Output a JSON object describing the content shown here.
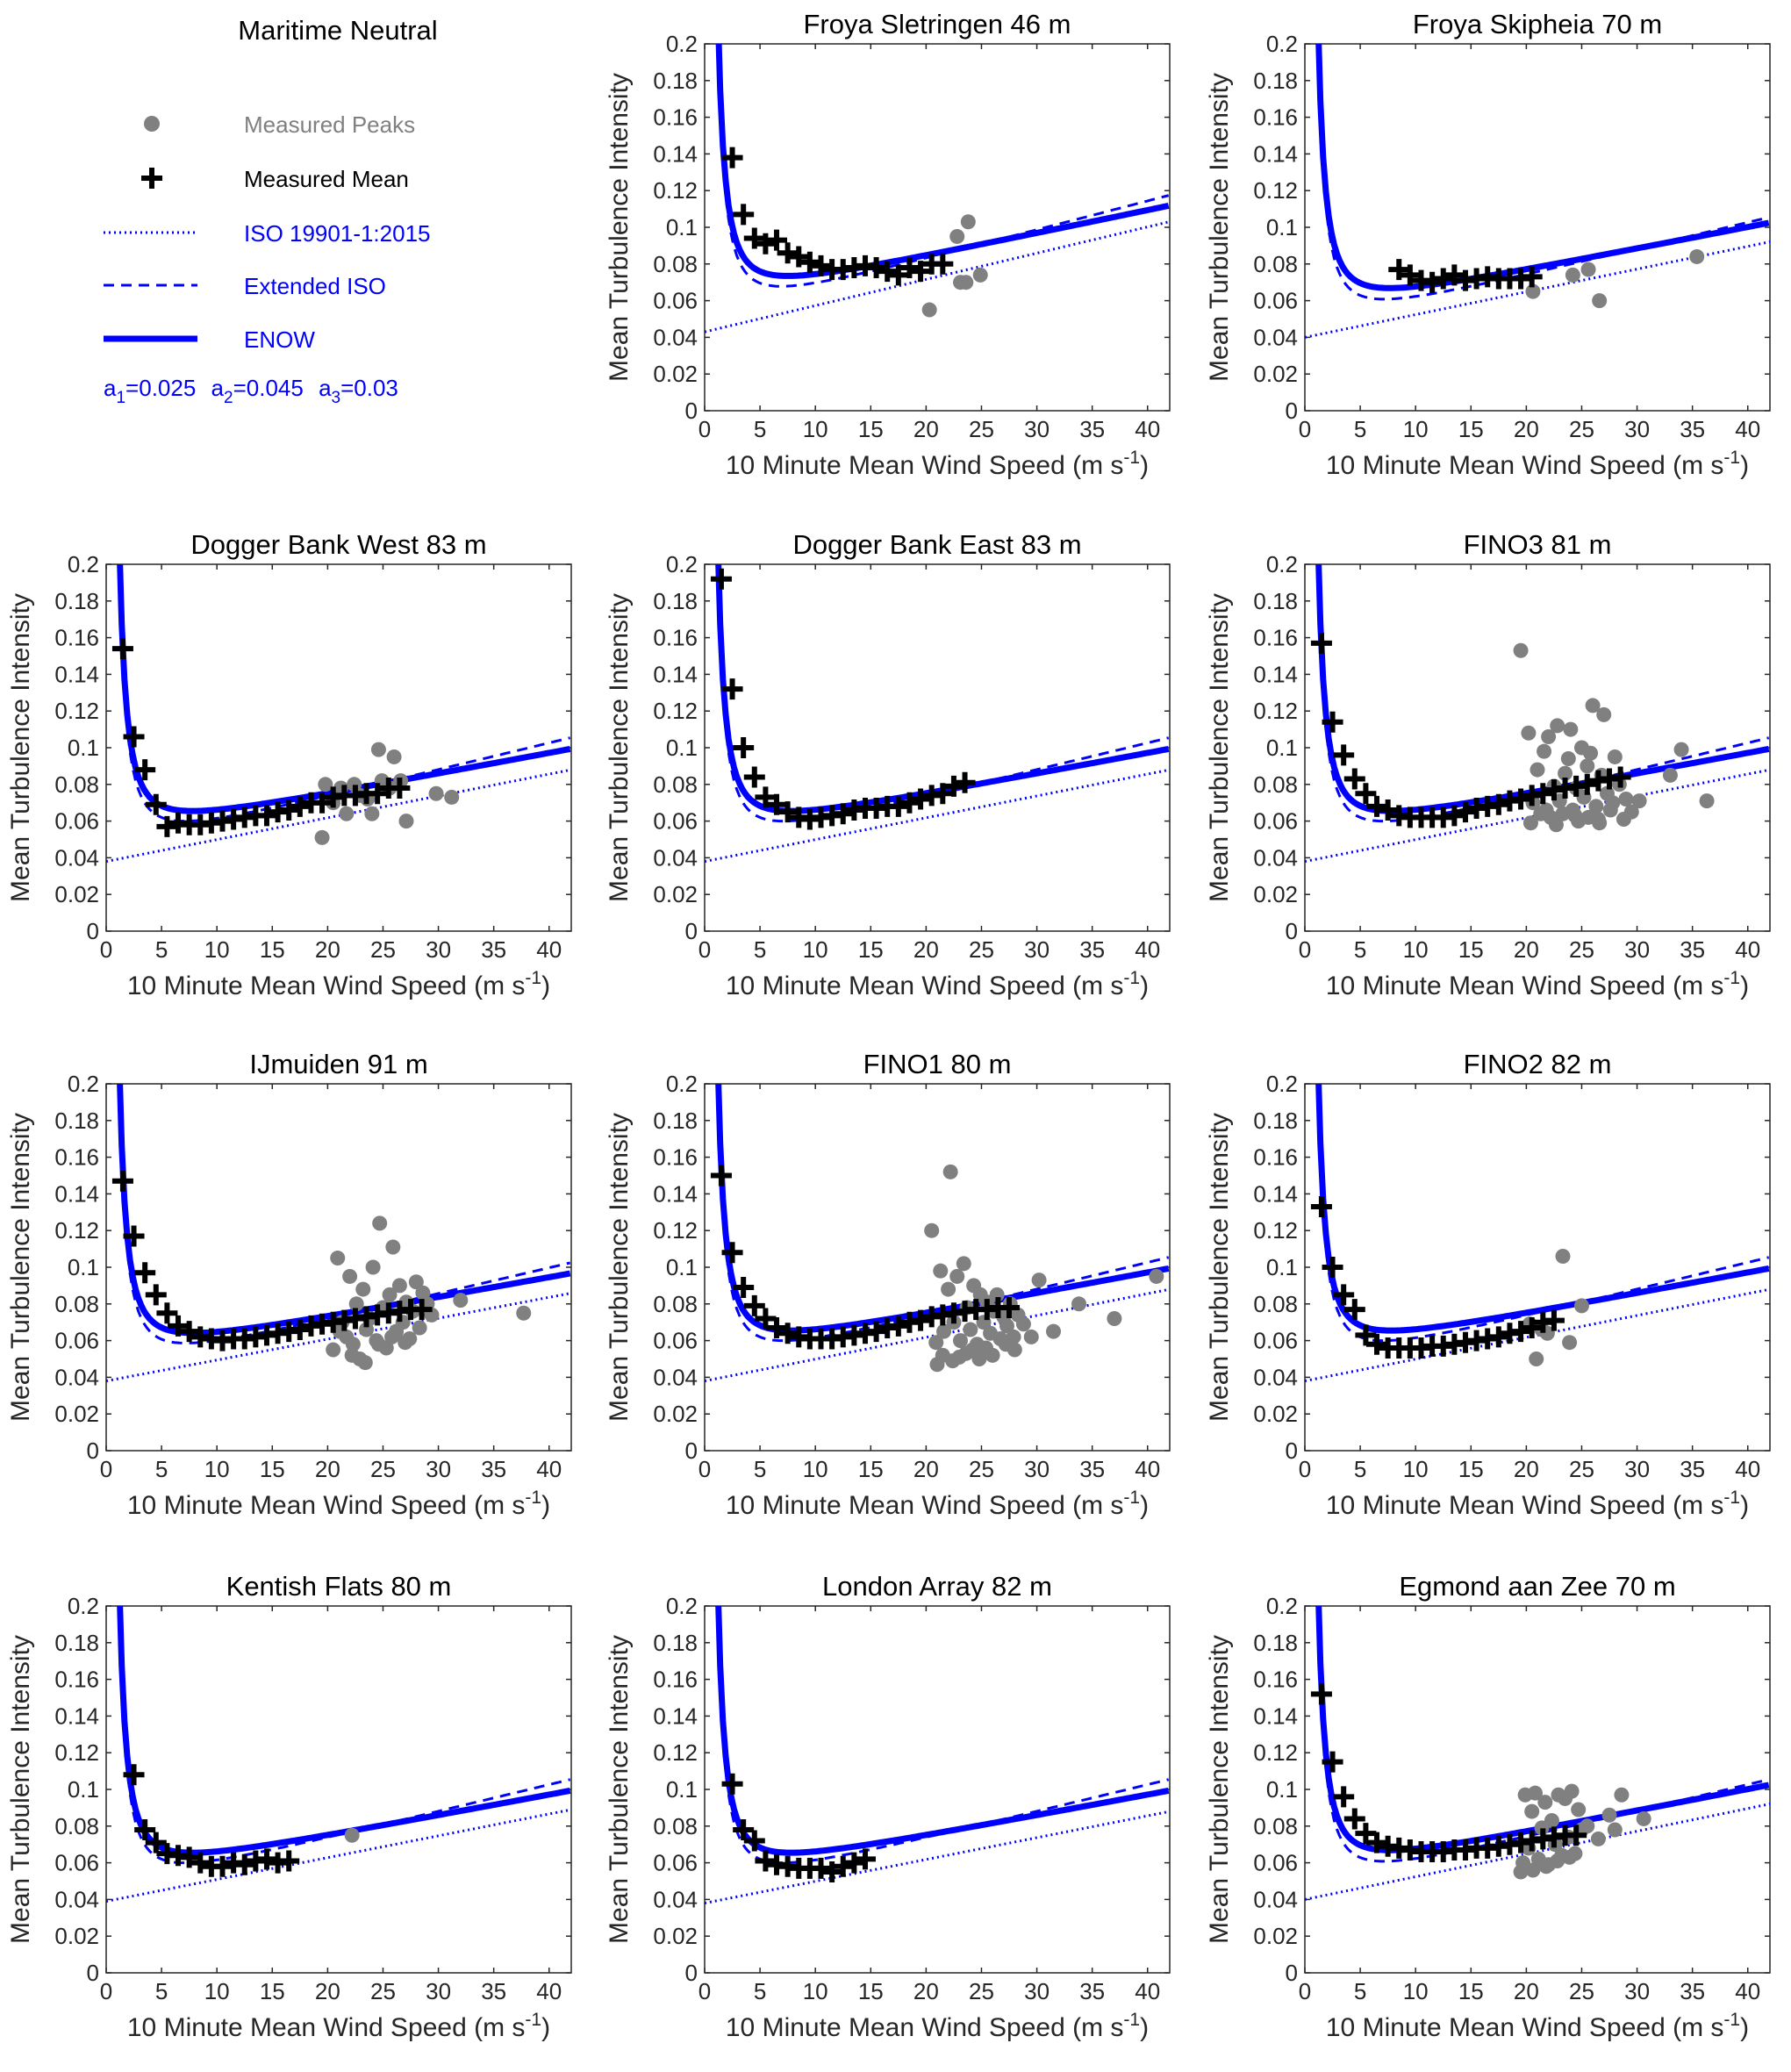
{
  "figure": {
    "legend_panel_title": "Maritime Neutral",
    "xlabel": "10 Minute Mean Wind Speed (m s",
    "xlabel_sup": "-1",
    "xlabel_end": ")",
    "ylabel": "Mean Turbulence Intensity",
    "xlim": [
      0,
      42
    ],
    "ylim": [
      0,
      0.2
    ],
    "xticks": [
      "0",
      "5",
      "10",
      "15",
      "20",
      "25",
      "30",
      "35",
      "40"
    ],
    "yticks": [
      "0",
      "0.02",
      "0.04",
      "0.06",
      "0.08",
      "0.1",
      "0.12",
      "0.14",
      "0.16",
      "0.18",
      "0.2"
    ],
    "colors": {
      "model": "#0000ff",
      "mean": "#000000",
      "peaks": "#808080"
    }
  },
  "legend": {
    "entries": [
      {
        "label": "Measured Peaks",
        "color": "#808080",
        "marker": "circle-marker"
      },
      {
        "label": "Measured Mean",
        "color": "#000000",
        "marker": "plus-marker"
      },
      {
        "label": "ISO 19901-1:2015",
        "color": "#0000ff",
        "marker": "dotted-line"
      },
      {
        "label": "Extended ISO",
        "color": "#0000ff",
        "marker": "dashed-line"
      },
      {
        "label": "ENOW",
        "color": "#0000ff",
        "marker": "thick-solid-line"
      }
    ],
    "coefficients": [
      {
        "name": "a",
        "sub": "1",
        "value": "=0.025"
      },
      {
        "name": "a",
        "sub": "2",
        "value": "=0.045"
      },
      {
        "name": "a",
        "sub": "3",
        "value": "=0.03"
      }
    ]
  },
  "chart_data": [
    {
      "type": "line+scatter",
      "title": "Froya Sletringen 46 m",
      "iso": [
        0.043,
        0.00143
      ],
      "enow": [
        0.058,
        0.00127
      ],
      "ext_max": 0.117,
      "mean_x": [
        2.5,
        3.5,
        4.5,
        5.5,
        6.5,
        7.5,
        8.5,
        9.5,
        10.5,
        11.5,
        12.5,
        13.5,
        14.5,
        15.5,
        16.5,
        17.5,
        18.5,
        19.5,
        20.5,
        21.5
      ],
      "mean_y": [
        0.138,
        0.107,
        0.094,
        0.091,
        0.093,
        0.086,
        0.084,
        0.081,
        0.079,
        0.077,
        0.077,
        0.078,
        0.079,
        0.078,
        0.076,
        0.074,
        0.078,
        0.076,
        0.08,
        0.08
      ],
      "peaks_x": [
        20.3,
        22.8,
        23.1,
        23.6,
        23.8,
        24.9
      ],
      "peaks_y": [
        0.055,
        0.095,
        0.07,
        0.07,
        0.103,
        0.074
      ]
    },
    {
      "type": "line+scatter",
      "title": "Froya Skipheia 70 m",
      "iso": [
        0.04,
        0.00124
      ],
      "enow": [
        0.052,
        0.00119
      ],
      "ext_max": 0.105,
      "mean_x": [
        8.5,
        9.5,
        10.5,
        11.5,
        12.5,
        13.5,
        14.5,
        15.5,
        16.5,
        17.5,
        18.5,
        19.5,
        20.5
      ],
      "mean_y": [
        0.077,
        0.074,
        0.071,
        0.07,
        0.072,
        0.074,
        0.071,
        0.072,
        0.073,
        0.072,
        0.072,
        0.072,
        0.073
      ],
      "peaks_x": [
        20.6,
        24.2,
        25.6,
        26.6,
        35.4
      ],
      "peaks_y": [
        0.065,
        0.074,
        0.077,
        0.06,
        0.084
      ]
    },
    {
      "type": "line+scatter",
      "title": "Dogger Bank West 83 m",
      "iso": [
        0.038,
        0.00119
      ],
      "enow": [
        0.051,
        0.00114
      ],
      "ext_max": 0.105,
      "mean_x": [
        1.5,
        2.5,
        3.5,
        4.5,
        5.5,
        6.5,
        7.5,
        8.5,
        9.5,
        10.5,
        11.5,
        12.5,
        13.5,
        14.5,
        15.5,
        16.5,
        17.5,
        18.5,
        19.5,
        20.5,
        21.5,
        22.5,
        23.5,
        24.5,
        25.5,
        26.5
      ],
      "mean_y": [
        0.154,
        0.106,
        0.088,
        0.069,
        0.057,
        0.059,
        0.058,
        0.058,
        0.059,
        0.06,
        0.061,
        0.062,
        0.063,
        0.063,
        0.065,
        0.066,
        0.068,
        0.07,
        0.07,
        0.073,
        0.074,
        0.074,
        0.075,
        0.075,
        0.078,
        0.078
      ],
      "peaks_x": [
        19.5,
        19.8,
        20.5,
        21.2,
        21.7,
        22.4,
        22.9,
        23.6,
        24.0,
        24.6,
        24.9,
        25.6,
        26.0,
        26.6,
        27.1,
        29.8,
        31.2
      ],
      "peaks_y": [
        0.051,
        0.08,
        0.07,
        0.078,
        0.064,
        0.08,
        0.074,
        0.072,
        0.064,
        0.099,
        0.082,
        0.078,
        0.095,
        0.082,
        0.06,
        0.075,
        0.073
      ]
    },
    {
      "type": "line+scatter",
      "title": "Dogger Bank East 83 m",
      "iso": [
        0.038,
        0.00119
      ],
      "enow": [
        0.051,
        0.00114
      ],
      "ext_max": 0.105,
      "mean_x": [
        1.5,
        2.5,
        3.5,
        4.5,
        5.5,
        6.5,
        7.5,
        8.5,
        9.5,
        10.5,
        11.5,
        12.5,
        13.5,
        14.5,
        15.5,
        16.5,
        17.5,
        18.5,
        19.5,
        20.5,
        21.5,
        22.5,
        23.5
      ],
      "mean_y": [
        0.192,
        0.132,
        0.1,
        0.084,
        0.073,
        0.069,
        0.065,
        0.062,
        0.061,
        0.062,
        0.063,
        0.064,
        0.066,
        0.067,
        0.067,
        0.068,
        0.068,
        0.07,
        0.072,
        0.074,
        0.075,
        0.079,
        0.081
      ],
      "peaks_x": [],
      "peaks_y": []
    },
    {
      "type": "line+scatter",
      "title": "FINO3 81 m",
      "iso": [
        0.038,
        0.00119
      ],
      "enow": [
        0.051,
        0.00114
      ],
      "ext_max": 0.105,
      "mean_x": [
        1.5,
        2.5,
        3.5,
        4.5,
        5.5,
        6.5,
        7.5,
        8.5,
        9.5,
        10.5,
        11.5,
        12.5,
        13.5,
        14.5,
        15.5,
        16.5,
        17.5,
        18.5,
        19.5,
        20.5,
        21.5,
        22.5,
        23.5,
        24.5,
        25.5,
        26.5,
        27.5,
        28.5
      ],
      "mean_y": [
        0.157,
        0.114,
        0.096,
        0.083,
        0.075,
        0.068,
        0.066,
        0.063,
        0.062,
        0.062,
        0.062,
        0.062,
        0.063,
        0.065,
        0.067,
        0.068,
        0.069,
        0.071,
        0.072,
        0.074,
        0.075,
        0.077,
        0.078,
        0.079,
        0.08,
        0.082,
        0.083,
        0.084
      ],
      "peaks_x": [
        19.5,
        20.2,
        20.6,
        21.0,
        21.3,
        21.6,
        22.0,
        22.2,
        22.5,
        22.8,
        23.0,
        23.3,
        23.5,
        23.8,
        24.0,
        24.2,
        24.5,
        24.7,
        25.0,
        25.2,
        25.5,
        25.8,
        26.0,
        26.3,
        26.5,
        26.8,
        27.0,
        27.3,
        27.6,
        28.0,
        28.4,
        29.0,
        29.5,
        30.2,
        33.0,
        34.0,
        36.3,
        20.4,
        21.8,
        22.7,
        24.4,
        25.6,
        26.6,
        27.8,
        28.8
      ],
      "peaks_y": [
        0.153,
        0.108,
        0.07,
        0.088,
        0.064,
        0.098,
        0.106,
        0.062,
        0.079,
        0.112,
        0.071,
        0.064,
        0.086,
        0.094,
        0.11,
        0.066,
        0.078,
        0.06,
        0.1,
        0.073,
        0.09,
        0.097,
        0.123,
        0.068,
        0.061,
        0.085,
        0.118,
        0.075,
        0.066,
        0.095,
        0.08,
        0.072,
        0.065,
        0.071,
        0.085,
        0.099,
        0.071,
        0.059,
        0.066,
        0.058,
        0.063,
        0.062,
        0.059,
        0.07,
        0.061
      ]
    },
    {
      "type": "line+scatter",
      "title": "IJmuiden 91 m",
      "iso": [
        0.038,
        0.00114
      ],
      "enow": [
        0.05,
        0.0011
      ],
      "ext_max": 0.102,
      "mean_x": [
        1.5,
        2.5,
        3.5,
        4.5,
        5.5,
        6.5,
        7.5,
        8.5,
        9.5,
        10.5,
        11.5,
        12.5,
        13.5,
        14.5,
        15.5,
        16.5,
        17.5,
        18.5,
        19.5,
        20.5,
        21.5,
        22.5,
        23.5,
        24.5,
        25.5,
        26.5,
        27.5,
        28.5
      ],
      "mean_y": [
        0.147,
        0.117,
        0.097,
        0.085,
        0.075,
        0.068,
        0.065,
        0.062,
        0.061,
        0.06,
        0.061,
        0.061,
        0.062,
        0.063,
        0.064,
        0.065,
        0.066,
        0.068,
        0.069,
        0.07,
        0.071,
        0.072,
        0.073,
        0.074,
        0.075,
        0.076,
        0.077,
        0.077
      ],
      "peaks_x": [
        20.5,
        20.9,
        21.3,
        21.7,
        22.0,
        22.3,
        22.6,
        22.9,
        23.2,
        23.5,
        23.8,
        24.1,
        24.4,
        24.7,
        25.0,
        25.3,
        25.6,
        25.9,
        26.2,
        26.5,
        26.8,
        27.1,
        27.4,
        27.7,
        28.0,
        28.3,
        28.6,
        29.0,
        29.4,
        32.0,
        37.7,
        21.1,
        22.2,
        23.4,
        24.6,
        25.8,
        27.0
      ],
      "peaks_y": [
        0.055,
        0.105,
        0.07,
        0.062,
        0.095,
        0.058,
        0.08,
        0.05,
        0.088,
        0.066,
        0.072,
        0.1,
        0.06,
        0.124,
        0.078,
        0.056,
        0.085,
        0.111,
        0.065,
        0.09,
        0.07,
        0.081,
        0.061,
        0.076,
        0.092,
        0.067,
        0.086,
        0.08,
        0.074,
        0.082,
        0.075,
        0.065,
        0.052,
        0.048,
        0.058,
        0.062,
        0.059
      ]
    },
    {
      "type": "line+scatter",
      "title": "FINO1 80 m",
      "iso": [
        0.038,
        0.00119
      ],
      "enow": [
        0.051,
        0.00114
      ],
      "ext_max": 0.105,
      "mean_x": [
        1.5,
        2.5,
        3.5,
        4.5,
        5.5,
        6.5,
        7.5,
        8.5,
        9.5,
        10.5,
        11.5,
        12.5,
        13.5,
        14.5,
        15.5,
        16.5,
        17.5,
        18.5,
        19.5,
        20.5,
        21.5,
        22.5,
        23.5,
        24.5,
        25.5,
        26.5,
        27.5
      ],
      "mean_y": [
        0.15,
        0.108,
        0.089,
        0.079,
        0.072,
        0.067,
        0.064,
        0.062,
        0.061,
        0.061,
        0.061,
        0.062,
        0.063,
        0.064,
        0.065,
        0.067,
        0.068,
        0.07,
        0.071,
        0.073,
        0.074,
        0.075,
        0.076,
        0.077,
        0.077,
        0.078,
        0.078
      ],
      "peaks_x": [
        20.5,
        20.9,
        21.3,
        21.6,
        22.0,
        22.2,
        22.5,
        22.8,
        23.1,
        23.4,
        23.7,
        24.0,
        24.3,
        24.6,
        24.9,
        25.2,
        25.5,
        25.8,
        26.1,
        26.4,
        26.7,
        27.0,
        27.3,
        27.6,
        27.9,
        28.3,
        28.8,
        29.5,
        30.2,
        31.5,
        33.8,
        37.0,
        40.8,
        21.0,
        21.5,
        22.4,
        23.0,
        23.6,
        24.2,
        24.8,
        25.4,
        26.0,
        27.2,
        28.0
      ],
      "peaks_y": [
        0.12,
        0.059,
        0.098,
        0.065,
        0.088,
        0.152,
        0.07,
        0.095,
        0.06,
        0.102,
        0.078,
        0.066,
        0.09,
        0.058,
        0.085,
        0.07,
        0.081,
        0.064,
        0.076,
        0.085,
        0.061,
        0.073,
        0.068,
        0.08,
        0.062,
        0.074,
        0.069,
        0.062,
        0.093,
        0.065,
        0.08,
        0.072,
        0.095,
        0.047,
        0.052,
        0.049,
        0.051,
        0.053,
        0.055,
        0.05,
        0.056,
        0.052,
        0.058,
        0.055
      ]
    },
    {
      "type": "line+scatter",
      "title": "FINO2 82 m",
      "iso": [
        0.038,
        0.00119
      ],
      "enow": [
        0.051,
        0.00114
      ],
      "ext_max": 0.105,
      "mean_x": [
        1.5,
        2.5,
        3.5,
        4.5,
        5.5,
        6.5,
        7.5,
        8.5,
        9.5,
        10.5,
        11.5,
        12.5,
        13.5,
        14.5,
        15.5,
        16.5,
        17.5,
        18.5,
        19.5,
        20.5,
        21.5,
        22.5
      ],
      "mean_y": [
        0.133,
        0.1,
        0.085,
        0.077,
        0.063,
        0.058,
        0.056,
        0.056,
        0.056,
        0.056,
        0.057,
        0.057,
        0.058,
        0.059,
        0.06,
        0.061,
        0.062,
        0.064,
        0.065,
        0.067,
        0.07,
        0.071
      ],
      "peaks_x": [
        20.3,
        20.9,
        21.4,
        21.9,
        23.3,
        23.9,
        25.0
      ],
      "peaks_y": [
        0.069,
        0.05,
        0.066,
        0.064,
        0.106,
        0.059,
        0.079
      ]
    },
    {
      "type": "line+scatter",
      "title": "Kentish Flats 80 m",
      "iso": [
        0.039,
        0.00119
      ],
      "enow": [
        0.051,
        0.00114
      ],
      "ext_max": 0.105,
      "mean_x": [
        2.5,
        3.5,
        4.5,
        5.5,
        6.5,
        7.5,
        8.5,
        9.5,
        10.5,
        11.5,
        12.5,
        13.5,
        14.5,
        15.5,
        16.5
      ],
      "mean_y": [
        0.108,
        0.078,
        0.071,
        0.065,
        0.064,
        0.063,
        0.06,
        0.058,
        0.058,
        0.06,
        0.059,
        0.061,
        0.062,
        0.06,
        0.061
      ],
      "peaks_x": [
        22.2
      ],
      "peaks_y": [
        0.075
      ]
    },
    {
      "type": "line+scatter",
      "title": "London Array 82 m",
      "iso": [
        0.038,
        0.00119
      ],
      "enow": [
        0.051,
        0.00114
      ],
      "ext_max": 0.105,
      "mean_x": [
        2.5,
        3.5,
        4.5,
        5.5,
        6.5,
        7.5,
        8.5,
        9.5,
        10.5,
        11.5,
        12.5,
        13.5,
        14.5
      ],
      "mean_y": [
        0.103,
        0.078,
        0.072,
        0.061,
        0.059,
        0.058,
        0.057,
        0.057,
        0.057,
        0.055,
        0.058,
        0.06,
        0.062
      ],
      "peaks_x": [],
      "peaks_y": []
    },
    {
      "type": "line+scatter",
      "title": "Egmond aan Zee 70 m",
      "iso": [
        0.04,
        0.00124
      ],
      "enow": [
        0.052,
        0.00119
      ],
      "ext_max": 0.105,
      "mean_x": [
        1.5,
        2.5,
        3.5,
        4.5,
        5.5,
        6.5,
        7.5,
        8.5,
        9.5,
        10.5,
        11.5,
        12.5,
        13.5,
        14.5,
        15.5,
        16.5,
        17.5,
        18.5,
        19.5,
        20.5,
        21.5,
        22.5,
        23.5,
        24.5
      ],
      "mean_y": [
        0.152,
        0.115,
        0.096,
        0.084,
        0.076,
        0.071,
        0.069,
        0.068,
        0.067,
        0.066,
        0.066,
        0.066,
        0.067,
        0.067,
        0.068,
        0.068,
        0.069,
        0.07,
        0.071,
        0.072,
        0.073,
        0.074,
        0.075,
        0.075
      ],
      "peaks_x": [
        19.5,
        19.9,
        20.2,
        20.5,
        20.8,
        21.1,
        21.4,
        21.7,
        22.0,
        22.3,
        22.6,
        22.9,
        23.2,
        23.5,
        23.8,
        24.1,
        24.4,
        24.7,
        25.0,
        25.5,
        26.5,
        27.5,
        28.0,
        28.6,
        30.6,
        19.7,
        20.6,
        21.8,
        22.8,
        23.9
      ],
      "peaks_y": [
        0.055,
        0.097,
        0.068,
        0.088,
        0.098,
        0.062,
        0.079,
        0.093,
        0.059,
        0.083,
        0.07,
        0.097,
        0.064,
        0.095,
        0.074,
        0.099,
        0.065,
        0.089,
        0.078,
        0.08,
        0.073,
        0.086,
        0.078,
        0.097,
        0.084,
        0.06,
        0.056,
        0.058,
        0.061,
        0.063
      ]
    }
  ]
}
